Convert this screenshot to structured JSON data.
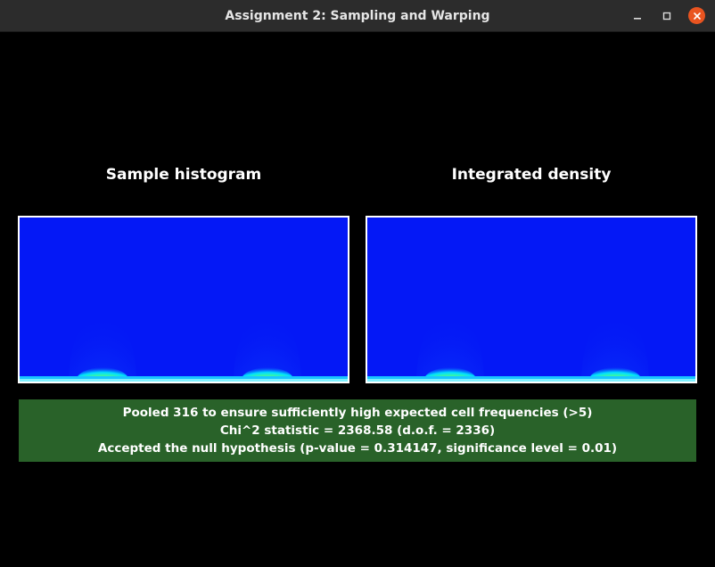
{
  "window": {
    "title": "Assignment 2: Sampling and Warping"
  },
  "panels": {
    "left_title": "Sample histogram",
    "right_title": "Integrated density"
  },
  "colors": {
    "plot_background": "#0418f6",
    "status_background": "#296229",
    "close_button": "#e95420"
  },
  "icons": {
    "minimize": "minimize-icon",
    "maximize": "maximize-icon",
    "close": "close-icon"
  },
  "status": {
    "line1": "Pooled 316 to ensure sufficiently high expected cell frequencies (>5)",
    "line2": "Chi^2 statistic = 2368.58 (d.o.f. = 2336)",
    "line3": "Accepted the null hypothesis (p-value = 0.314147, significance level = 0.01)"
  }
}
